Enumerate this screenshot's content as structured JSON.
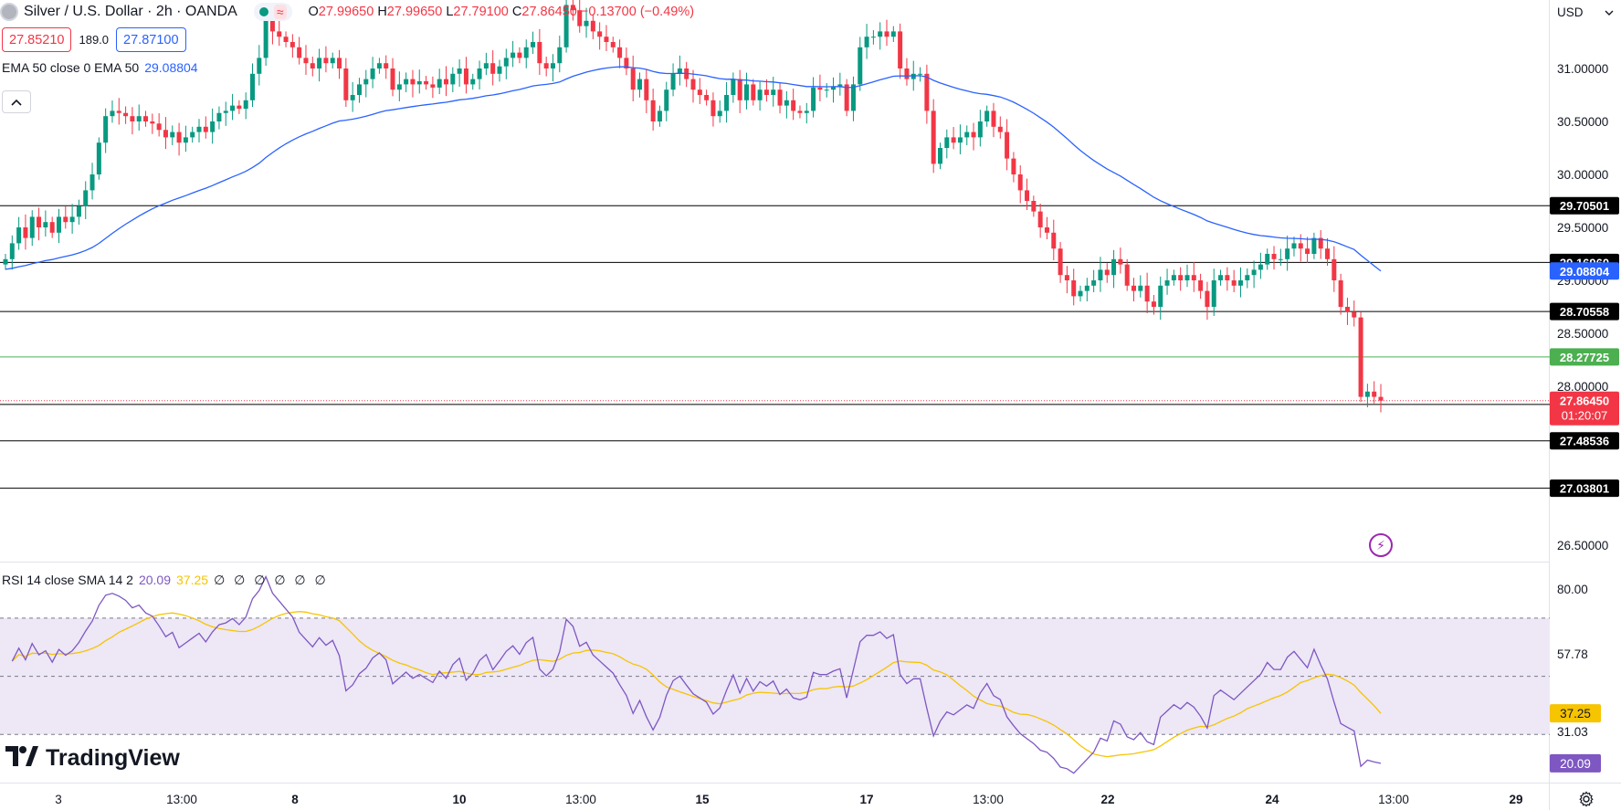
{
  "header": {
    "symbol_title": "Silver / U.S. Dollar · 2h · OANDA",
    "open_key": "O",
    "open": "27.99650",
    "high_key": "H",
    "high": "27.99650",
    "low_key": "L",
    "low": "27.79100",
    "close_key": "C",
    "close": "27.86450",
    "change": "−0.13700 (−0.49%)"
  },
  "trade": {
    "sell_price": "27.85210",
    "spread": "189.0",
    "buy_price": "27.87100"
  },
  "ema_legend": {
    "label": "EMA 50 close 0 EMA 50",
    "value": "29.08804"
  },
  "rsi_legend": {
    "label": "RSI 14 close SMA 14 2",
    "rsi_value": "20.09",
    "sma_value": "37.25",
    "extra": "∅ ∅ ∅ ∅ ∅ ∅"
  },
  "currency": "USD",
  "branding": "TradingView",
  "colors": {
    "up": "#089981",
    "down": "#f23645",
    "ema": "#2962ff",
    "rsi": "#7e57c2",
    "rsi_sma": "#f7c400",
    "band_fill": "#ede7f6",
    "grid_line": "#000000"
  },
  "icons": {
    "symbol": "silver-coin-icon",
    "collapse": "chevron-up-icon",
    "flash": "lightning-icon",
    "settings": "gear-icon",
    "logo": "tradingview-logo-icon"
  },
  "chart_data": [
    {
      "type": "candlestick",
      "title": "Silver / U.S. Dollar · 2h · OANDA",
      "price_axis_ticks": [
        "31.00000",
        "30.50000",
        "30.00000",
        "29.50000",
        "29.00000",
        "28.50000",
        "28.00000",
        "26.50000"
      ],
      "ylim": [
        26.3,
        31.45
      ],
      "time_axis_labels": [
        "3",
        "13:00",
        "8",
        "10",
        "13:00",
        "15",
        "17",
        "13:00",
        "22",
        "24",
        "13:00",
        "29"
      ],
      "ema50": {
        "name": "EMA 50",
        "current": 29.08804
      },
      "horizontal_levels": [
        {
          "value": 29.70501,
          "label": "29.70501",
          "color": "#000000"
        },
        {
          "value": 29.1696,
          "label": "29.16960",
          "color": "#000000"
        },
        {
          "value": 28.70558,
          "label": "28.70558",
          "color": "#000000"
        },
        {
          "value": 28.27725,
          "label": "28.27725",
          "color": "#4caf50"
        },
        {
          "value": 27.82842,
          "label": "27.82842",
          "color": "#000000"
        },
        {
          "value": 27.48536,
          "label": "27.48536",
          "color": "#000000"
        },
        {
          "value": 27.03801,
          "label": "27.03801",
          "color": "#000000"
        }
      ],
      "ema_badge": {
        "value": 29.08804,
        "label": "29.08804"
      },
      "last_price_badge": {
        "value": 27.8645,
        "label": "27.86450",
        "countdown": "01:20:07"
      },
      "closes": [
        29.2,
        29.35,
        29.5,
        29.4,
        29.6,
        29.5,
        29.55,
        29.45,
        29.6,
        29.55,
        29.6,
        29.7,
        29.85,
        30.0,
        30.3,
        30.55,
        30.6,
        30.58,
        30.55,
        30.5,
        30.55,
        30.5,
        30.48,
        30.42,
        30.35,
        30.4,
        30.3,
        30.35,
        30.4,
        30.45,
        30.4,
        30.5,
        30.58,
        30.6,
        30.65,
        30.62,
        30.7,
        30.95,
        31.1,
        31.45,
        31.35,
        31.3,
        31.25,
        31.2,
        31.1,
        31.05,
        31.0,
        31.1,
        31.05,
        31.1,
        31.0,
        30.7,
        30.75,
        30.85,
        30.9,
        31.0,
        31.05,
        31.0,
        30.8,
        30.85,
        30.9,
        30.85,
        30.88,
        30.85,
        30.82,
        30.9,
        30.85,
        30.95,
        31.0,
        30.85,
        30.9,
        31.0,
        31.05,
        30.95,
        31.02,
        31.1,
        31.15,
        31.1,
        31.2,
        31.25,
        31.05,
        31.0,
        31.05,
        31.2,
        31.6,
        31.55,
        31.4,
        31.45,
        31.35,
        31.3,
        31.25,
        31.2,
        31.1,
        31.0,
        30.8,
        30.9,
        30.7,
        30.5,
        30.6,
        30.8,
        30.95,
        31.0,
        30.9,
        30.8,
        30.75,
        30.7,
        30.55,
        30.6,
        30.75,
        30.9,
        30.7,
        30.85,
        30.7,
        30.8,
        30.75,
        30.8,
        30.65,
        30.7,
        30.6,
        30.58,
        30.6,
        30.82,
        30.8,
        30.8,
        30.83,
        30.85,
        30.6,
        30.85,
        31.2,
        31.3,
        31.3,
        31.35,
        31.3,
        31.35,
        31.0,
        30.9,
        30.95,
        30.95,
        30.6,
        30.1,
        30.25,
        30.35,
        30.3,
        30.35,
        30.4,
        30.35,
        30.5,
        30.6,
        30.45,
        30.4,
        30.15,
        30.0,
        29.85,
        29.75,
        29.65,
        29.5,
        29.45,
        29.3,
        29.05,
        29.0,
        28.85,
        28.9,
        28.95,
        29.0,
        29.1,
        29.05,
        29.2,
        29.15,
        28.95,
        28.9,
        28.95,
        28.8,
        28.75,
        28.95,
        29.0,
        29.05,
        29.0,
        29.05,
        29.0,
        28.9,
        28.75,
        29.0,
        29.05,
        29.0,
        28.95,
        29.0,
        29.05,
        29.1,
        29.15,
        29.25,
        29.2,
        29.2,
        29.3,
        29.35,
        29.3,
        29.25,
        29.4,
        29.3,
        29.2,
        29.0,
        28.75,
        28.7,
        28.65,
        27.9,
        27.95,
        27.9,
        27.8645
      ],
      "rsi": {
        "name": "RSI 14",
        "current": 20.09,
        "sma_current": 37.25,
        "levels": [
          70,
          50,
          30
        ],
        "axis_labels": [
          "80.00",
          "57.78",
          "31.03"
        ],
        "ylim": [
          0,
          100
        ]
      }
    }
  ]
}
